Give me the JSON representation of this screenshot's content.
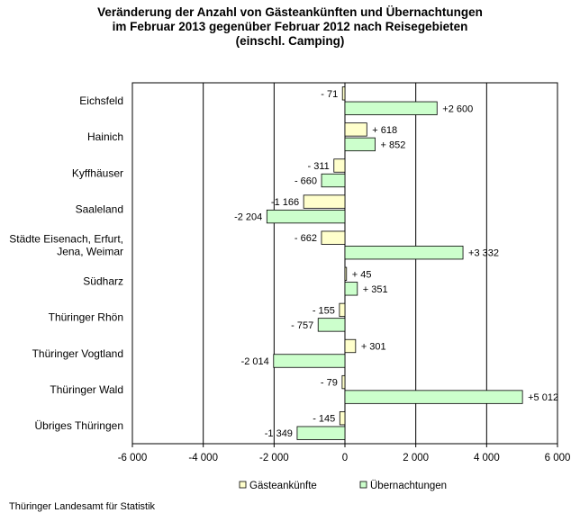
{
  "title_lines": [
    "Veränderung der Anzahl von Gästeankünften und Übernachtungen",
    "im Februar 2013 gegenüber Februar 2012 nach Reisegebieten",
    "(einschl. Camping)"
  ],
  "footer": "Thüringer Landesamt für Statistik",
  "colors": {
    "gaesteankuenfte": "#FFFFCC",
    "uebernachtungen": "#CCFFCC",
    "bar_border": "#000000",
    "grid": "#000000"
  },
  "chart_data": {
    "type": "bar",
    "orientation": "horizontal",
    "title": "Veränderung der Anzahl von Gästeankünften und Übernachtungen im Februar 2013 gegenüber Februar 2012 nach Reisegebieten (einschl. Camping)",
    "categories": [
      [
        "Eichsfeld"
      ],
      [
        "Hainich"
      ],
      [
        "Kyffhäuser"
      ],
      [
        "Saaleland"
      ],
      [
        "Städte Eisenach, Erfurt,",
        "Jena, Weimar"
      ],
      [
        "Südharz"
      ],
      [
        "Thüringer Rhön"
      ],
      [
        "Thüringer Vogtland"
      ],
      [
        "Thüringer Wald"
      ],
      [
        "Übriges Thüringen"
      ]
    ],
    "series": [
      {
        "name": "Gästeankünfte",
        "values": [
          -71,
          618,
          -311,
          -1166,
          -662,
          45,
          -155,
          301,
          -79,
          -145
        ],
        "labels": [
          "- 71",
          "+ 618",
          "- 311",
          "-1 166",
          "- 662",
          "+ 45",
          "- 155",
          "+ 301",
          "- 79",
          "- 145"
        ]
      },
      {
        "name": "Übernachtungen",
        "values": [
          2600,
          852,
          -660,
          -2204,
          3332,
          351,
          -757,
          -2014,
          5012,
          -1349
        ],
        "labels": [
          "+2 600",
          "+ 852",
          "- 660",
          "-2 204",
          "+3 332",
          "+ 351",
          "- 757",
          "-2 014",
          "+5 012",
          "-1 349"
        ]
      }
    ],
    "xlim": [
      -6000,
      6000
    ],
    "xticks": [
      -6000,
      -4000,
      -2000,
      0,
      2000,
      4000,
      6000
    ],
    "xtick_labels": [
      "-6 000",
      "-4 000",
      "-2 000",
      "0",
      "2 000",
      "4 000",
      "6 000"
    ],
    "grid": "vertical",
    "legend_position": "bottom"
  }
}
